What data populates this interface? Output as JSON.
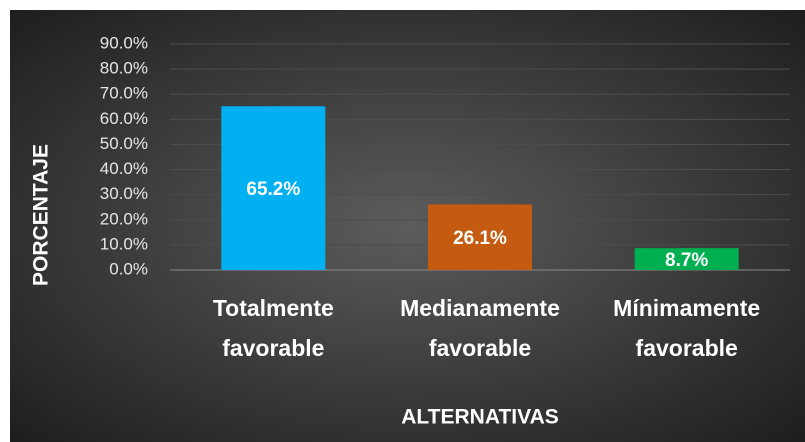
{
  "chart_data": {
    "type": "bar",
    "categories": [
      "Totalmente favorable",
      "Medianamente favorable",
      "Mínimamente favorable"
    ],
    "values": [
      65.2,
      26.1,
      8.7
    ],
    "value_labels": [
      "65.2%",
      "26.1%",
      "8.7%"
    ],
    "colors": [
      "#00b0f0",
      "#c55a11",
      "#00b050"
    ],
    "xlabel": "ALTERNATIVAS",
    "ylabel": "PORCENTAJE",
    "ylim": [
      0,
      90
    ],
    "yticks": [
      {
        "value": 0,
        "label": "0.0%"
      },
      {
        "value": 10,
        "label": "10.0%"
      },
      {
        "value": 20,
        "label": "20.0%"
      },
      {
        "value": 30,
        "label": "30.0%"
      },
      {
        "value": 40,
        "label": "40.0%"
      },
      {
        "value": 50,
        "label": "50.0%"
      },
      {
        "value": 60,
        "label": "60.0%"
      },
      {
        "value": 70,
        "label": "70.0%"
      },
      {
        "value": 80,
        "label": "80.0%"
      },
      {
        "value": 90,
        "label": "90.0%"
      }
    ],
    "grid": true
  }
}
